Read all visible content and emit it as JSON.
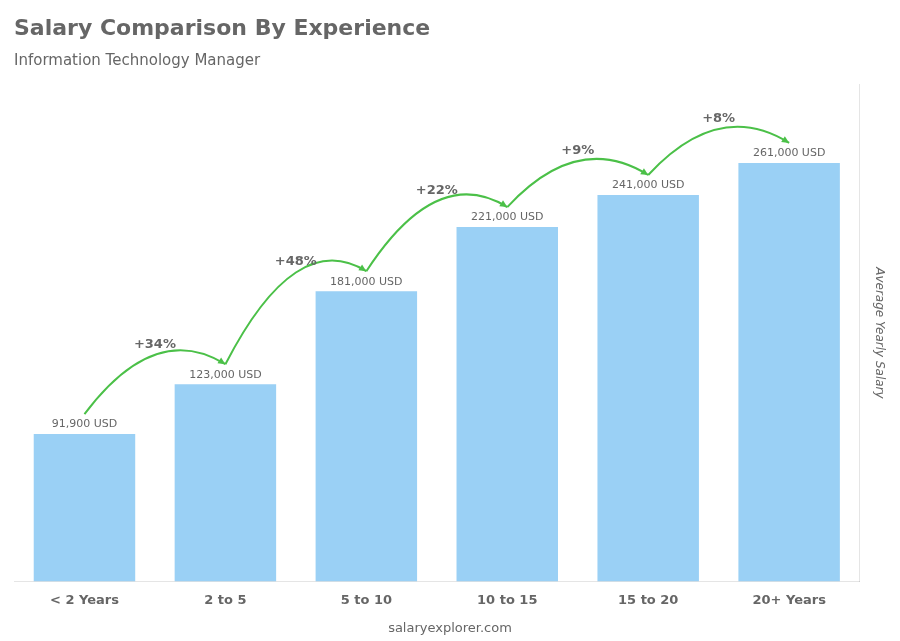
{
  "chart_data": {
    "type": "bar",
    "title": "Salary Comparison By Experience",
    "subtitle": "Information Technology Manager",
    "categories": [
      "< 2 Years",
      "2 to 5",
      "5 to 10",
      "10 to 15",
      "15 to 20",
      "20+ Years"
    ],
    "values": [
      91900,
      123000,
      181000,
      221000,
      241000,
      261000
    ],
    "value_labels": [
      "91,900 USD",
      "123,000 USD",
      "181,000 USD",
      "221,000 USD",
      "241,000 USD",
      "261,000 USD"
    ],
    "data_labels": true,
    "annotations": [
      "+34%",
      "+48%",
      "+22%",
      "+9%",
      "+8%"
    ],
    "ylabel": "Average Yearly Salary",
    "footer": "salaryexplorer.com",
    "ylim": [
      0,
      310000
    ],
    "grid": false,
    "tick_labels": "x"
  }
}
